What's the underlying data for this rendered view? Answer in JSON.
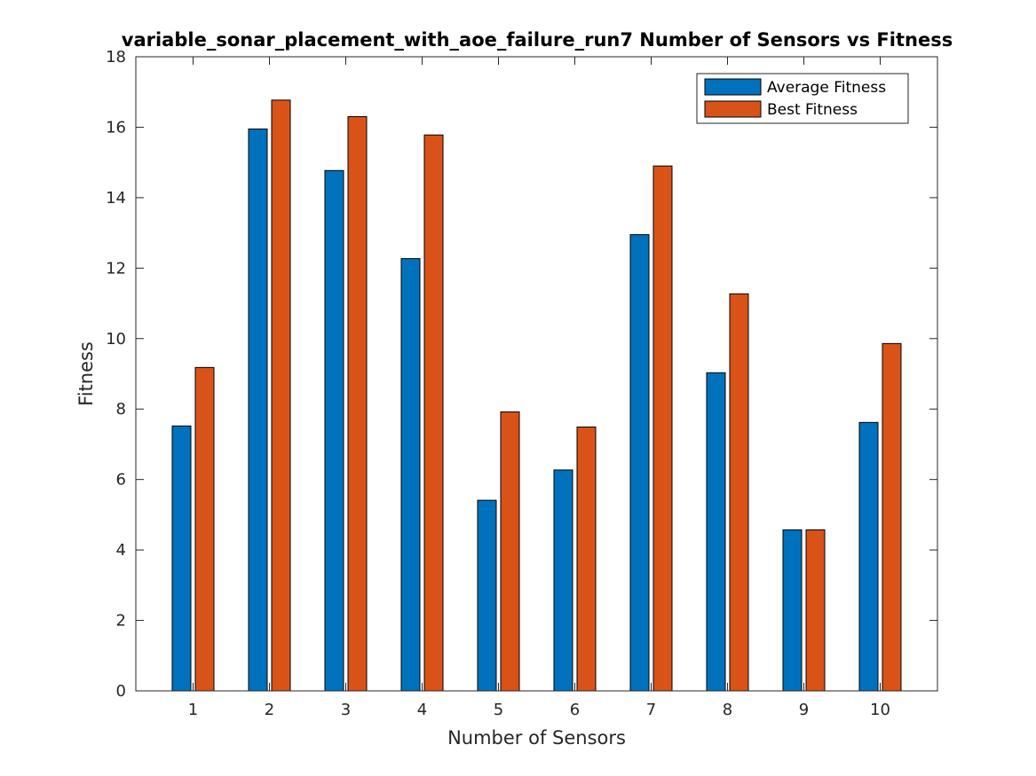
{
  "chart_data": {
    "type": "bar",
    "title": "variable_sonar_placement_with_aoe_failure_run7 Number of Sensors vs Fitness",
    "xlabel": "Number of Sensors",
    "ylabel": "Fitness",
    "categories": [
      "1",
      "2",
      "3",
      "4",
      "5",
      "6",
      "7",
      "8",
      "9",
      "10"
    ],
    "series": [
      {
        "name": "Average Fitness",
        "color": "#0072BD",
        "values": [
          7.52,
          15.95,
          14.77,
          12.27,
          5.41,
          6.27,
          12.95,
          9.03,
          4.57,
          7.62
        ]
      },
      {
        "name": "Best Fitness",
        "color": "#D95319",
        "values": [
          9.18,
          16.77,
          16.3,
          15.78,
          7.92,
          7.49,
          14.9,
          11.27,
          4.57,
          9.86
        ]
      }
    ],
    "ylim": [
      0,
      18
    ],
    "yticks": [
      "0",
      "2",
      "4",
      "6",
      "8",
      "10",
      "12",
      "14",
      "16",
      "18"
    ],
    "legend_position": "top-right",
    "grid": false
  }
}
